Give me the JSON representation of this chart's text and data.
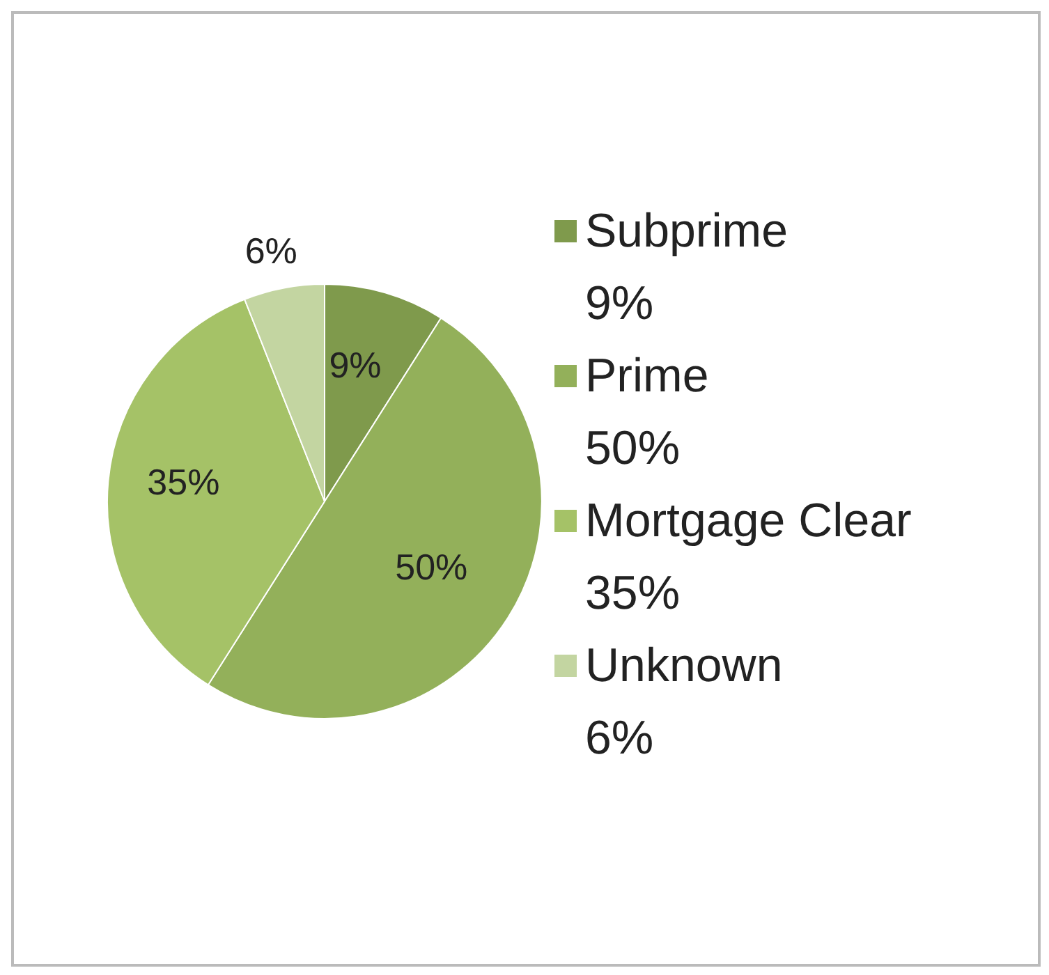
{
  "chart_data": {
    "type": "pie",
    "categories": [
      "Subprime",
      "Prime",
      "Mortgage Clear",
      "Unknown"
    ],
    "values": [
      9,
      50,
      35,
      6
    ],
    "value_labels": [
      "9%",
      "50%",
      "35%",
      "6%"
    ],
    "colors": [
      "#7f9a4c",
      "#93b05a",
      "#a5c267",
      "#c3d5a1"
    ],
    "legend": "right"
  }
}
